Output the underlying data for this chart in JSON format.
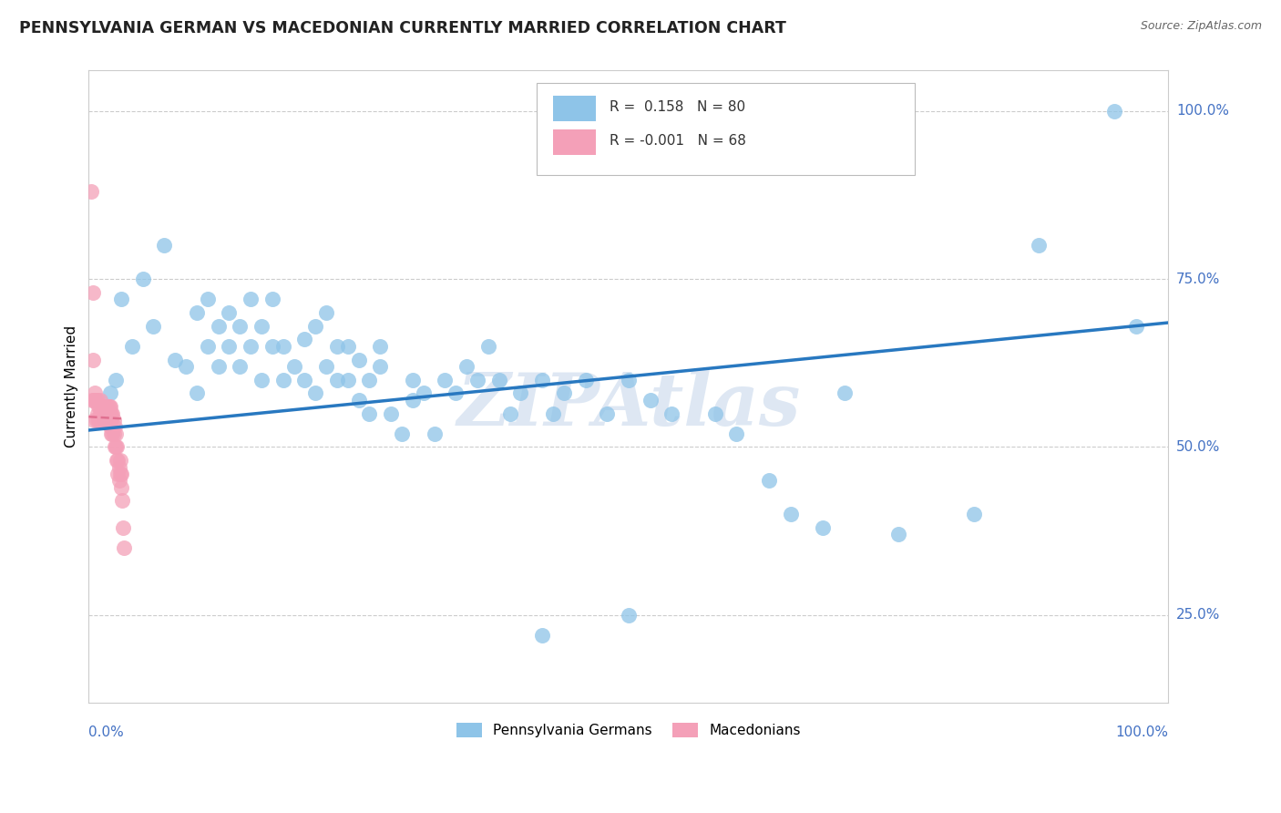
{
  "title": "PENNSYLVANIA GERMAN VS MACEDONIAN CURRENTLY MARRIED CORRELATION CHART",
  "source": "Source: ZipAtlas.com",
  "ylabel": "Currently Married",
  "r_blue": 0.158,
  "n_blue": 80,
  "r_pink": -0.001,
  "n_pink": 68,
  "ytick_labels": [
    "25.0%",
    "50.0%",
    "75.0%",
    "100.0%"
  ],
  "ytick_values": [
    0.25,
    0.5,
    0.75,
    1.0
  ],
  "blue_color": "#8EC4E8",
  "pink_color": "#F4A0B8",
  "blue_line_color": "#2878C0",
  "pink_line_color": "#E07090",
  "watermark": "ZIPAtlas",
  "watermark_color": "#C8D8EC",
  "blue_scatter_x": [
    0.015,
    0.02,
    0.025,
    0.03,
    0.04,
    0.05,
    0.06,
    0.07,
    0.08,
    0.09,
    0.1,
    0.1,
    0.11,
    0.11,
    0.12,
    0.12,
    0.13,
    0.13,
    0.14,
    0.14,
    0.15,
    0.15,
    0.16,
    0.16,
    0.17,
    0.17,
    0.18,
    0.18,
    0.19,
    0.2,
    0.2,
    0.21,
    0.21,
    0.22,
    0.22,
    0.23,
    0.23,
    0.24,
    0.24,
    0.25,
    0.25,
    0.26,
    0.26,
    0.27,
    0.27,
    0.28,
    0.29,
    0.3,
    0.3,
    0.31,
    0.32,
    0.33,
    0.34,
    0.35,
    0.36,
    0.37,
    0.38,
    0.39,
    0.4,
    0.42,
    0.43,
    0.44,
    0.46,
    0.48,
    0.5,
    0.52,
    0.54,
    0.58,
    0.6,
    0.63,
    0.65,
    0.68,
    0.7,
    0.75,
    0.82,
    0.88,
    0.95,
    0.97,
    0.5,
    0.42
  ],
  "blue_scatter_y": [
    0.54,
    0.58,
    0.6,
    0.72,
    0.65,
    0.75,
    0.68,
    0.8,
    0.63,
    0.62,
    0.58,
    0.7,
    0.65,
    0.72,
    0.62,
    0.68,
    0.7,
    0.65,
    0.62,
    0.68,
    0.72,
    0.65,
    0.6,
    0.68,
    0.72,
    0.65,
    0.6,
    0.65,
    0.62,
    0.66,
    0.6,
    0.68,
    0.58,
    0.62,
    0.7,
    0.65,
    0.6,
    0.65,
    0.6,
    0.63,
    0.57,
    0.6,
    0.55,
    0.62,
    0.65,
    0.55,
    0.52,
    0.6,
    0.57,
    0.58,
    0.52,
    0.6,
    0.58,
    0.62,
    0.6,
    0.65,
    0.6,
    0.55,
    0.58,
    0.6,
    0.55,
    0.58,
    0.6,
    0.55,
    0.6,
    0.57,
    0.55,
    0.55,
    0.52,
    0.45,
    0.4,
    0.38,
    0.58,
    0.37,
    0.4,
    0.8,
    1.0,
    0.68,
    0.25,
    0.22
  ],
  "pink_scatter_x": [
    0.002,
    0.003,
    0.004,
    0.004,
    0.005,
    0.005,
    0.006,
    0.006,
    0.007,
    0.007,
    0.008,
    0.008,
    0.009,
    0.009,
    0.01,
    0.01,
    0.011,
    0.011,
    0.012,
    0.012,
    0.013,
    0.013,
    0.013,
    0.014,
    0.014,
    0.014,
    0.015,
    0.015,
    0.015,
    0.016,
    0.016,
    0.016,
    0.017,
    0.017,
    0.017,
    0.018,
    0.018,
    0.018,
    0.019,
    0.019,
    0.019,
    0.02,
    0.02,
    0.02,
    0.021,
    0.021,
    0.021,
    0.022,
    0.022,
    0.023,
    0.023,
    0.024,
    0.024,
    0.025,
    0.025,
    0.026,
    0.026,
    0.027,
    0.027,
    0.028,
    0.028,
    0.029,
    0.029,
    0.03,
    0.03,
    0.031,
    0.032,
    0.033
  ],
  "pink_scatter_y": [
    0.88,
    0.57,
    0.73,
    0.63,
    0.57,
    0.54,
    0.58,
    0.57,
    0.54,
    0.57,
    0.55,
    0.57,
    0.54,
    0.56,
    0.56,
    0.54,
    0.55,
    0.57,
    0.55,
    0.56,
    0.55,
    0.56,
    0.54,
    0.55,
    0.56,
    0.54,
    0.55,
    0.56,
    0.54,
    0.55,
    0.56,
    0.54,
    0.55,
    0.56,
    0.54,
    0.55,
    0.56,
    0.54,
    0.55,
    0.56,
    0.54,
    0.55,
    0.53,
    0.56,
    0.52,
    0.55,
    0.54,
    0.52,
    0.55,
    0.52,
    0.54,
    0.5,
    0.53,
    0.5,
    0.52,
    0.48,
    0.5,
    0.46,
    0.48,
    0.45,
    0.47,
    0.46,
    0.48,
    0.44,
    0.46,
    0.42,
    0.38,
    0.35
  ],
  "blue_line_x": [
    0.0,
    1.0
  ],
  "blue_line_y": [
    0.525,
    0.685
  ],
  "pink_line_x": [
    0.0,
    0.033
  ],
  "pink_line_y": [
    0.545,
    0.542
  ],
  "xlim": [
    0.0,
    1.0
  ],
  "ylim": [
    0.12,
    1.06
  ],
  "legend_r_blue_text": "R =  0.158   N = 80",
  "legend_r_pink_text": "R = -0.001   N = 68",
  "bottom_legend_labels": [
    "Pennsylvania Germans",
    "Macedonians"
  ]
}
